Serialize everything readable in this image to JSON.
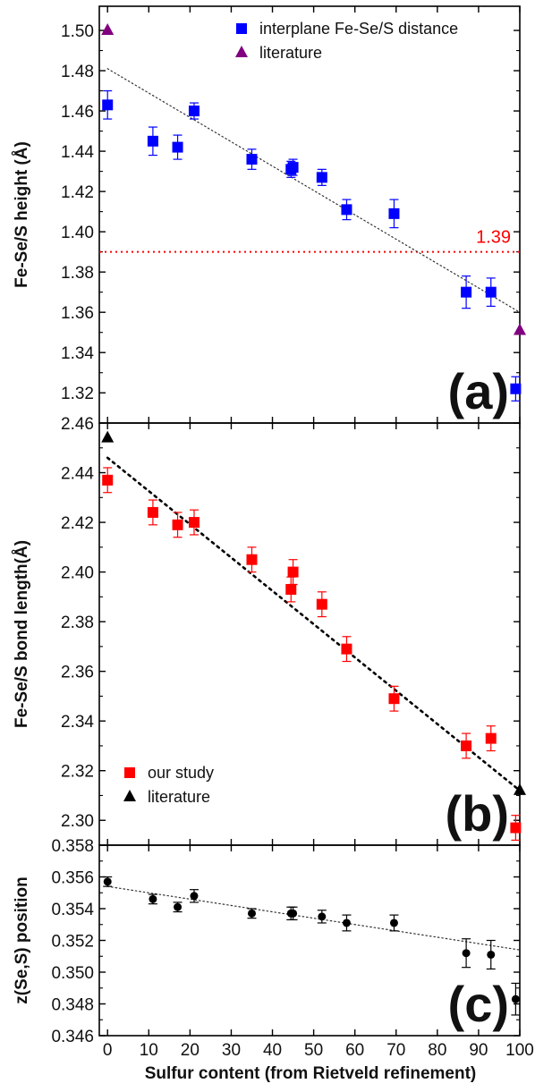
{
  "xaxis": {
    "label": "Sulfur content (from Rietveld refinement)",
    "range": [
      -2,
      100
    ],
    "ticks": [
      0,
      10,
      20,
      30,
      40,
      50,
      60,
      70,
      80,
      90,
      100
    ],
    "tick_labels": [
      "0",
      "10",
      "20",
      "30",
      "40",
      "50",
      "60",
      "70",
      "80",
      "90",
      "100"
    ]
  },
  "chart_data": [
    {
      "type": "scatter",
      "panel": "(a)",
      "ylabel": "Fe-Se/S height (Å)",
      "ylim": [
        1.305,
        1.512
      ],
      "yticks": [
        1.32,
        1.34,
        1.36,
        1.38,
        1.4,
        1.42,
        1.44,
        1.46,
        1.48,
        1.5
      ],
      "ytick_labels": [
        "1.32",
        "1.34",
        "1.36",
        "1.38",
        "1.40",
        "1.42",
        "1.44",
        "1.46",
        "1.48",
        "1.50"
      ],
      "legend_position": "top-right",
      "reference_line": {
        "y": 1.39,
        "label": "1.39",
        "color": "#ff0000"
      },
      "trend_line": {
        "x": [
          0,
          100
        ],
        "y": [
          1.481,
          1.36
        ],
        "color": "#333333"
      },
      "series": [
        {
          "name": "interplane Fe-Se/S distance",
          "marker": "square",
          "color": "#0000ff",
          "x": [
            0,
            11,
            17,
            21,
            35,
            44.5,
            45,
            52,
            58,
            69.5,
            87,
            93,
            99
          ],
          "y": [
            1.463,
            1.445,
            1.442,
            1.46,
            1.436,
            1.431,
            1.432,
            1.427,
            1.411,
            1.409,
            1.37,
            1.37,
            1.322
          ],
          "err": [
            0.007,
            0.007,
            0.006,
            0.004,
            0.005,
            0.004,
            0.004,
            0.004,
            0.005,
            0.007,
            0.008,
            0.007,
            0.006
          ]
        },
        {
          "name": "literature",
          "marker": "triangle",
          "color": "#800080",
          "x": [
            0,
            100
          ],
          "y": [
            1.5,
            1.351
          ]
        }
      ]
    },
    {
      "type": "scatter",
      "panel": "(b)",
      "ylabel": "Fe-Se/S bond length(Å)",
      "ylim": [
        2.29,
        2.46
      ],
      "yticks": [
        2.3,
        2.32,
        2.34,
        2.36,
        2.38,
        2.4,
        2.42,
        2.44,
        2.46
      ],
      "ytick_labels": [
        "2.30",
        "2.32",
        "2.34",
        "2.36",
        "2.38",
        "2.40",
        "2.42",
        "2.44",
        "2.46"
      ],
      "legend_position": "bottom-left",
      "trend_line": {
        "x": [
          0,
          100
        ],
        "y": [
          2.446,
          2.312
        ],
        "color": "#000000"
      },
      "series": [
        {
          "name": "our study",
          "marker": "square",
          "color": "#ff0000",
          "x": [
            0,
            11,
            17,
            21,
            35,
            44.5,
            45,
            52,
            58,
            69.5,
            87,
            93,
            99
          ],
          "y": [
            2.437,
            2.424,
            2.419,
            2.42,
            2.405,
            2.393,
            2.4,
            2.387,
            2.369,
            2.349,
            2.33,
            2.333,
            2.297
          ],
          "err": [
            0.005,
            0.005,
            0.005,
            0.005,
            0.005,
            0.005,
            0.005,
            0.005,
            0.005,
            0.005,
            0.005,
            0.005,
            0.005
          ]
        },
        {
          "name": "literature",
          "marker": "triangle",
          "color": "#000000",
          "x": [
            0,
            100
          ],
          "y": [
            2.454,
            2.312
          ]
        }
      ]
    },
    {
      "type": "scatter",
      "panel": "(c)",
      "ylabel": "z(Se,S) position",
      "ylim": [
        0.346,
        0.358
      ],
      "yticks": [
        0.346,
        0.348,
        0.35,
        0.352,
        0.354,
        0.356,
        0.358
      ],
      "ytick_labels": [
        "0.346",
        "0.348",
        "0.350",
        "0.352",
        "0.354",
        "0.356",
        "0.358"
      ],
      "trend_line": {
        "x": [
          0,
          100
        ],
        "y": [
          0.3554,
          0.3514
        ],
        "color": "#333333"
      },
      "series": [
        {
          "marker": "circle",
          "color": "#000000",
          "x": [
            0,
            11,
            17,
            21,
            35,
            44.5,
            45,
            52,
            58,
            69.5,
            87,
            93,
            99
          ],
          "y": [
            0.3557,
            0.3546,
            0.3541,
            0.3548,
            0.3537,
            0.3537,
            0.3537,
            0.3535,
            0.3531,
            0.3531,
            0.3512,
            0.3511,
            0.3483
          ],
          "err": [
            0.0003,
            0.0003,
            0.0003,
            0.0004,
            0.0003,
            0.0004,
            0.0004,
            0.0004,
            0.0005,
            0.0005,
            0.0009,
            0.0009,
            0.001
          ]
        }
      ]
    }
  ]
}
